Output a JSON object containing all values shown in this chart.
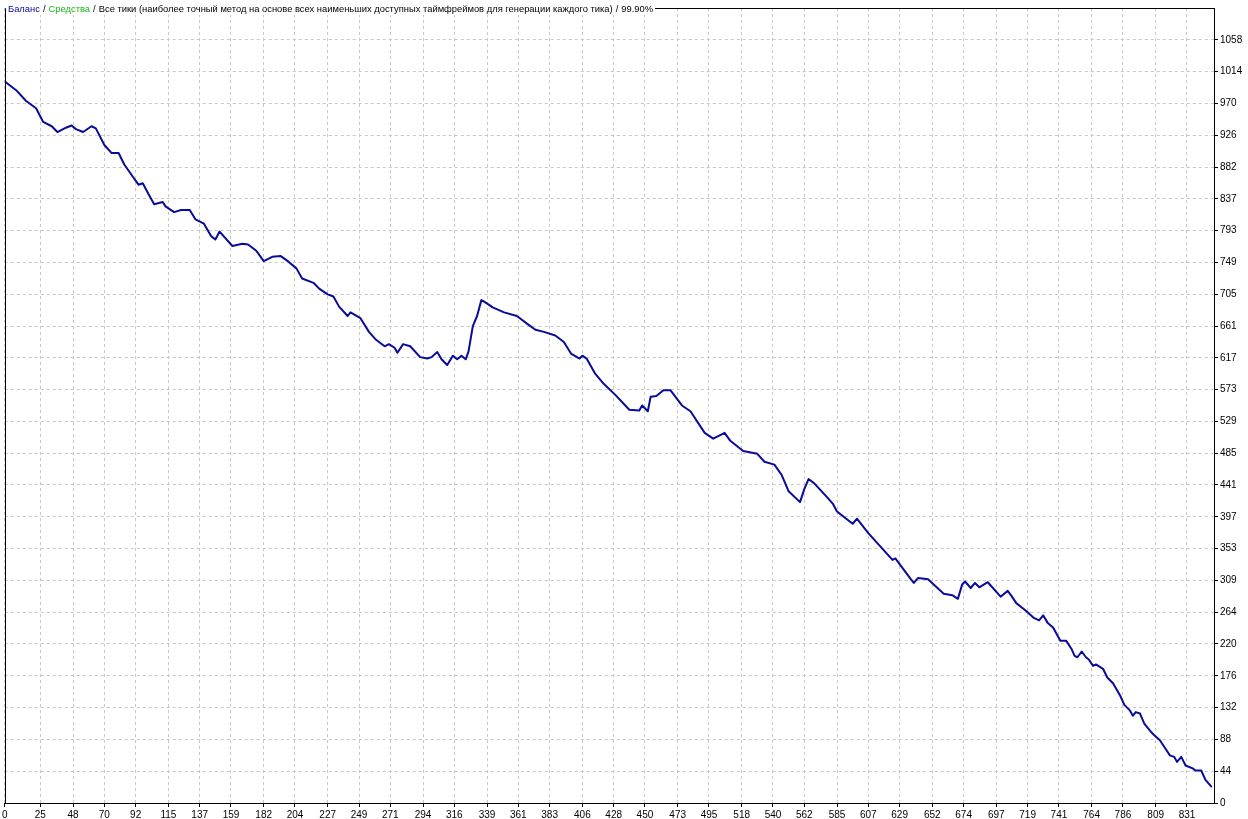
{
  "chart_data": {
    "type": "line",
    "title": "Все тики (наиболее точный метод на основе всех наименьших доступных таймфреймов для генерации каждого тика)",
    "subtitle": "99.90%",
    "annotations": [
      "/",
      "/",
      "/"
    ],
    "x": [
      0,
      8,
      15,
      22,
      27,
      33,
      37,
      43,
      47,
      50,
      55,
      61,
      64,
      70,
      75,
      80,
      84,
      90,
      94,
      97,
      101,
      105,
      111,
      113,
      119,
      124,
      130,
      134,
      140,
      145,
      148,
      151,
      160,
      167,
      171,
      177,
      182,
      188,
      194,
      199,
      205,
      209,
      217,
      221,
      227,
      231,
      235,
      241,
      243,
      250,
      256,
      261,
      267,
      270,
      274,
      276,
      280,
      285,
      292,
      297,
      300,
      304,
      307,
      311,
      315,
      318,
      321,
      324,
      326,
      329,
      332,
      335,
      337,
      343,
      351,
      360,
      368,
      373,
      379,
      387,
      393,
      398,
      404,
      406,
      409,
      415,
      421,
      429,
      439,
      446,
      448,
      452,
      454,
      458,
      463,
      468,
      476,
      482,
      492,
      498,
      506,
      510,
      519,
      529,
      534,
      541,
      546,
      551,
      559,
      562,
      565,
      569,
      577,
      582,
      585,
      596,
      599,
      607,
      624,
      626,
      637,
      639,
      642,
      649,
      660,
      666,
      670,
      673,
      675,
      679,
      682,
      685,
      691,
      700,
      705,
      708,
      711,
      718,
      723,
      727,
      730,
      733,
      737,
      742,
      746,
      750,
      752,
      754,
      757,
      760,
      762,
      765,
      767,
      772,
      775,
      779,
      784,
      787,
      791,
      793,
      795,
      798,
      801,
      806,
      808,
      812,
      815,
      819,
      822,
      824,
      827,
      830,
      835,
      837,
      841,
      844,
      848
    ],
    "series": [
      {
        "name": "Баланс",
        "color": "#0b0b9a",
        "values": [
          1000,
          988,
          973,
          963,
          944,
          938,
          930,
          936,
          939,
          934,
          930,
          938,
          935,
          912,
          901,
          901,
          885,
          868,
          857,
          859,
          844,
          830,
          833,
          827,
          819,
          822,
          822,
          809,
          803,
          786,
          781,
          792,
          772,
          775,
          774,
          765,
          751,
          757,
          758,
          751,
          741,
          727,
          721,
          713,
          705,
          702,
          688,
          675,
          680,
          672,
          653,
          642,
          633,
          636,
          631,
          624,
          636,
          633,
          618,
          616,
          618,
          625,
          615,
          607,
          620,
          615,
          620,
          615,
          626,
          661,
          675,
          697,
          695,
          687,
          680,
          675,
          663,
          656,
          653,
          648,
          639,
          623,
          616,
          620,
          616,
          595,
          581,
          566,
          545,
          544,
          551,
          543,
          563,
          564,
          572,
          572,
          551,
          543,
          513,
          505,
          513,
          502,
          488,
          484,
          473,
          469,
          455,
          432,
          417,
          435,
          449,
          443,
          426,
          415,
          404,
          387,
          394,
          374,
          337,
          339,
          310,
          305,
          312,
          310,
          290,
          288,
          283,
          303,
          307,
          298,
          305,
          299,
          306,
          286,
          294,
          286,
          277,
          266,
          257,
          253,
          260,
          250,
          243,
          225,
          225,
          213,
          204,
          202,
          210,
          202,
          199,
          190,
          192,
          186,
          174,
          166,
          149,
          136,
          128,
          121,
          126,
          124,
          110,
          98,
          94,
          87,
          78,
          66,
          64,
          57,
          64,
          52,
          48,
          45,
          45,
          32,
          23
        ]
      },
      {
        "name": "Средства",
        "color": "#19b919",
        "values": [
          null,
          null,
          null,
          null,
          null,
          null,
          null,
          null,
          null,
          null,
          null,
          null,
          null,
          null,
          null,
          null,
          null,
          null,
          null,
          null,
          null,
          null,
          null,
          null,
          null,
          null,
          null,
          null,
          null,
          null,
          null,
          null,
          null,
          null,
          null,
          null,
          null,
          null,
          null,
          null,
          null,
          null,
          null,
          null,
          null,
          null,
          null,
          null,
          null,
          null,
          null,
          null,
          null,
          null,
          null,
          null,
          null,
          null,
          null,
          null,
          null,
          null,
          null,
          null,
          null,
          null,
          null,
          null,
          null,
          null,
          null,
          null,
          null,
          null,
          null,
          null,
          null,
          null,
          null,
          null,
          null,
          null,
          null,
          null,
          null,
          null,
          null,
          null,
          null,
          null,
          null,
          null,
          null,
          null,
          null,
          null,
          null,
          null,
          null,
          null,
          null,
          null,
          null,
          null,
          null,
          null,
          null,
          null,
          null,
          null,
          null,
          null,
          null,
          null,
          null,
          null,
          null,
          null,
          null,
          null,
          null,
          null,
          null,
          null,
          null,
          null,
          null,
          null,
          null,
          null,
          null,
          null,
          null,
          null,
          null,
          null,
          null,
          null,
          null,
          null,
          null,
          null,
          null,
          null,
          null,
          null,
          null,
          null,
          null,
          null,
          null,
          null,
          null,
          null,
          null,
          null,
          null,
          null,
          null,
          null,
          null,
          null,
          null,
          null,
          null,
          null,
          null,
          null,
          null,
          null,
          null,
          null,
          null,
          null,
          null,
          null,
          null
        ]
      }
    ],
    "xlim": [
      0,
      850
    ],
    "xticks": [
      0,
      25,
      48,
      70,
      92,
      115,
      137,
      159,
      182,
      204,
      227,
      249,
      271,
      294,
      316,
      339,
      361,
      383,
      406,
      428,
      450,
      473,
      495,
      518,
      540,
      562,
      585,
      607,
      629,
      652,
      674,
      697,
      719,
      741,
      764,
      786,
      809,
      831
    ],
    "ylim": [
      0,
      1101.9
    ],
    "yticks": [
      0,
      {
        "value": 44.1,
        "label": "44"
      },
      {
        "value": 88.2,
        "label": "88"
      },
      {
        "value": 132.2,
        "label": "132"
      },
      {
        "value": 176.3,
        "label": "176"
      },
      {
        "value": 220.4,
        "label": "220"
      },
      {
        "value": 264.5,
        "label": "264"
      },
      {
        "value": 308.5,
        "label": "309"
      },
      {
        "value": 352.6,
        "label": "353"
      },
      {
        "value": 396.7,
        "label": "397"
      },
      {
        "value": 440.8,
        "label": "441"
      },
      {
        "value": 484.8,
        "label": "485"
      },
      {
        "value": 528.9,
        "label": "529"
      },
      {
        "value": 573.0,
        "label": "573"
      },
      {
        "value": 617.1,
        "label": "617"
      },
      {
        "value": 661.1,
        "label": "661"
      },
      {
        "value": 705.2,
        "label": "705"
      },
      {
        "value": 749.3,
        "label": "749"
      },
      {
        "value": 793.4,
        "label": "793"
      },
      {
        "value": 837.4,
        "label": "837"
      },
      {
        "value": 881.5,
        "label": "882"
      },
      {
        "value": 925.6,
        "label": "926"
      },
      {
        "value": 969.7,
        "label": "970"
      },
      {
        "value": 1013.7,
        "label": "1014"
      },
      {
        "value": 1057.8,
        "label": "1058"
      }
    ],
    "grid": true,
    "legend": "top left",
    "marker": "none",
    "line_style": "solid"
  }
}
